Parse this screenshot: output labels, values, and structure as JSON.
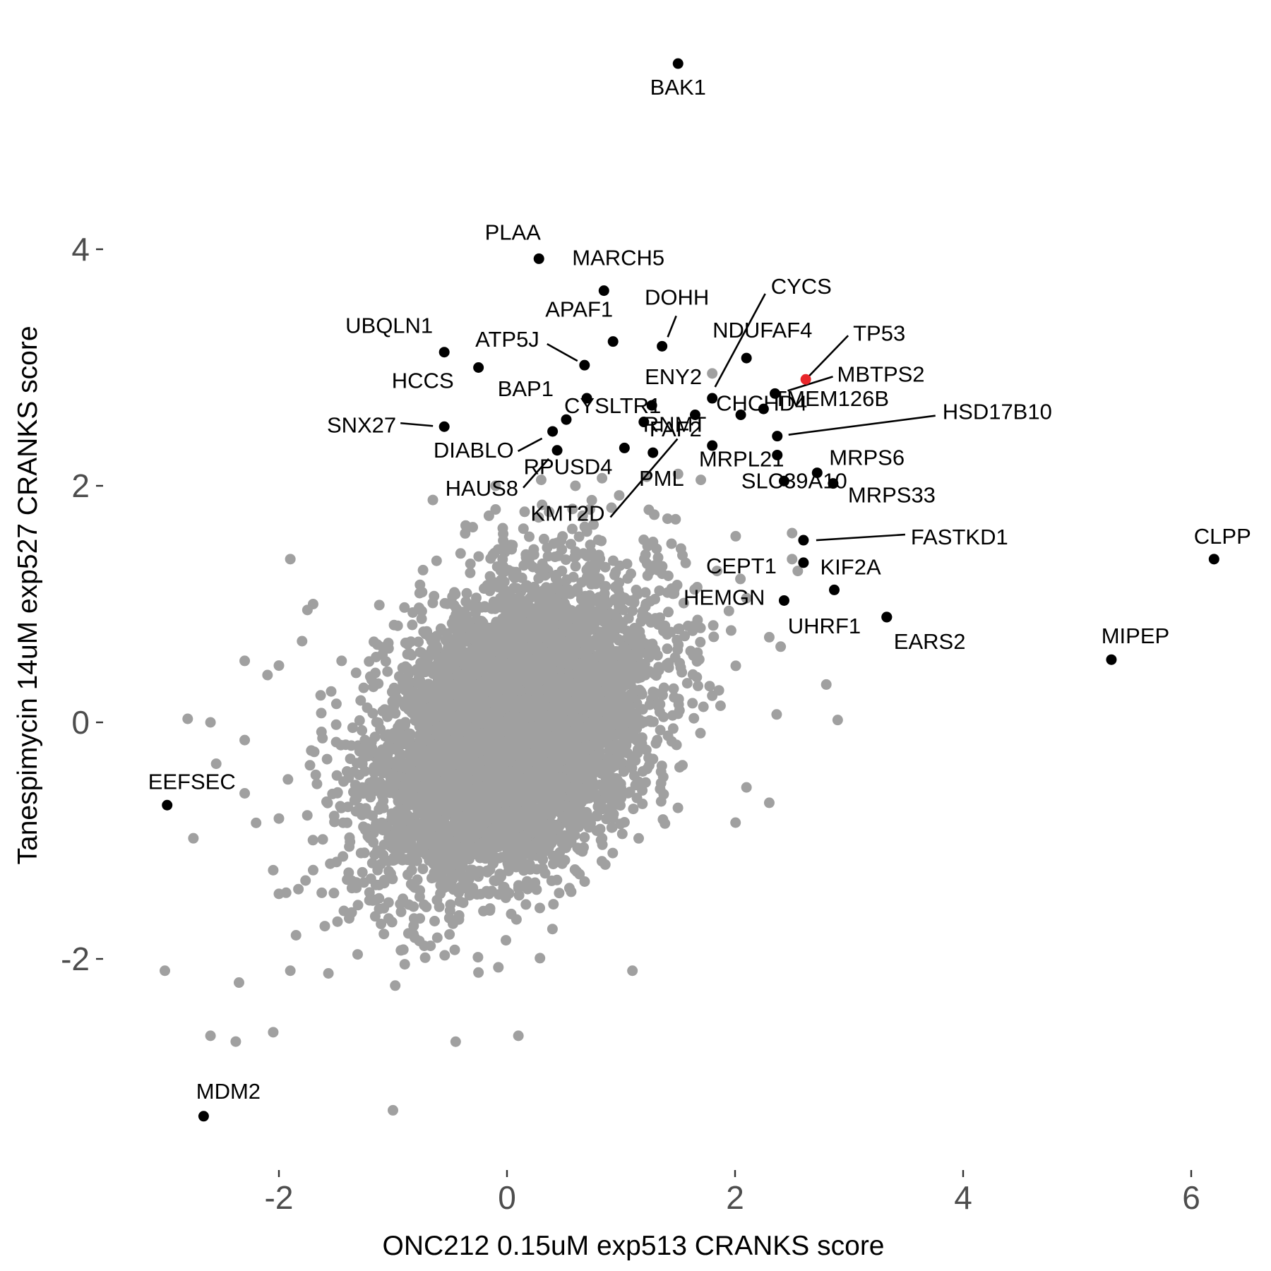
{
  "chart_data": {
    "type": "scatter",
    "title": "",
    "xlabel": "ONC212 0.15uM exp513 CRANKS score",
    "ylabel": "Tanespimycin 14uM exp527 CRANKS score",
    "xlim": [
      -3.1,
      6.5
    ],
    "ylim": [
      -3.7,
      5.5
    ],
    "x_ticks": [
      -2,
      0,
      2,
      4,
      6
    ],
    "y_ticks": [
      -2,
      0,
      2,
      4
    ],
    "grid": false,
    "legend": "none",
    "colors": {
      "background_points": "#a0a0a0",
      "highlighted_points": "#000000",
      "special_point": "#e8262a",
      "labels": "#000000"
    },
    "background_series": {
      "name": "",
      "description": "~18000 genes forming a dense elliptical cloud centred near (0, 0), plus scattered outliers",
      "color": "#a0a0a0",
      "outliers": [
        [
          -0.65,
          1.88
        ],
        [
          -0.1,
          1.8
        ],
        [
          -0.3,
          1.65
        ],
        [
          -1.9,
          1.38
        ],
        [
          -1.7,
          1.0
        ],
        [
          -1.75,
          0.95
        ],
        [
          -2.3,
          0.52
        ],
        [
          -2.0,
          0.48
        ],
        [
          -2.1,
          0.4
        ],
        [
          -2.8,
          0.03
        ],
        [
          -2.6,
          0.0
        ],
        [
          -2.3,
          -0.15
        ],
        [
          -2.55,
          -0.35
        ],
        [
          -2.3,
          -0.6
        ],
        [
          -2.75,
          -0.98
        ],
        [
          -2.2,
          -0.85
        ],
        [
          -2.05,
          -1.25
        ],
        [
          -2.0,
          -1.45
        ],
        [
          -1.85,
          -1.8
        ],
        [
          -1.9,
          -2.1
        ],
        [
          -2.35,
          -2.2
        ],
        [
          -3.0,
          -2.1
        ],
        [
          -2.6,
          -2.65
        ],
        [
          -2.05,
          -2.62
        ],
        [
          -0.45,
          -2.7
        ],
        [
          -1.0,
          -3.28
        ],
        [
          0.1,
          -2.65
        ],
        [
          1.1,
          -2.1
        ],
        [
          2.1,
          -0.55
        ],
        [
          2.3,
          -0.68
        ],
        [
          2.8,
          0.32
        ],
        [
          2.9,
          0.02
        ],
        [
          2.3,
          0.72
        ],
        [
          2.4,
          0.64
        ],
        [
          2.1,
          1.05
        ],
        [
          2.5,
          1.38
        ],
        [
          2.55,
          1.28
        ],
        [
          1.7,
          2.05
        ],
        [
          1.8,
          2.95
        ],
        [
          2.5,
          1.6
        ],
        [
          1.5,
          2.1
        ],
        [
          0.3,
          2.05
        ],
        [
          -0.1,
          2.0
        ],
        [
          0.6,
          2.0
        ]
      ]
    },
    "highlighted_points": [
      {
        "label": "BAK1",
        "x": 1.5,
        "y": 5.57
      },
      {
        "label": "PLAA",
        "x": 0.28,
        "y": 3.92
      },
      {
        "label": "MARCH5",
        "x": 0.85,
        "y": 3.65
      },
      {
        "label": "UBQLN1",
        "x": -0.55,
        "y": 3.13
      },
      {
        "label": "HCCS",
        "x": -0.25,
        "y": 3.0
      },
      {
        "label": "APAF1",
        "x": 0.93,
        "y": 3.22
      },
      {
        "label": "DOHH",
        "x": 1.36,
        "y": 3.18
      },
      {
        "label": "ATP5J",
        "x": 0.68,
        "y": 3.02
      },
      {
        "label": "CYSLTR1",
        "x": 0.7,
        "y": 2.74
      },
      {
        "label": "ENY2",
        "x": 1.27,
        "y": 2.68
      },
      {
        "label": "CYCS",
        "x": 1.8,
        "y": 2.74
      },
      {
        "label": "NDUFAF4",
        "x": 2.1,
        "y": 3.08
      },
      {
        "label": "CHCHD4",
        "x": 2.05,
        "y": 2.6
      },
      {
        "label": "TP53",
        "x": 2.62,
        "y": 2.9,
        "special": true
      },
      {
        "label": "MBTPS2",
        "x": 2.35,
        "y": 2.78
      },
      {
        "label": "SNX27",
        "x": -0.55,
        "y": 2.5
      },
      {
        "label": "BAP1",
        "x": 0.52,
        "y": 2.56
      },
      {
        "label": "RNMT",
        "x": 1.2,
        "y": 2.54
      },
      {
        "label": "DIABLO",
        "x": 0.4,
        "y": 2.46
      },
      {
        "label": "HAUS8",
        "x": 0.44,
        "y": 2.3
      },
      {
        "label": "RPUSD4",
        "x": 1.03,
        "y": 2.32
      },
      {
        "label": "FAF2",
        "x": 1.28,
        "y": 2.28
      },
      {
        "label": "PML",
        "x": 1.8,
        "y": 2.34
      },
      {
        "label": "KMT2D",
        "x": 1.65,
        "y": 2.6
      },
      {
        "label": "TMEM126B",
        "x": 2.25,
        "y": 2.65
      },
      {
        "label": "HSD17B10",
        "x": 2.37,
        "y": 2.42
      },
      {
        "label": "SLC39A10",
        "x": 2.37,
        "y": 2.26
      },
      {
        "label": "MRPS6",
        "x": 2.72,
        "y": 2.11
      },
      {
        "label": "MRPS33",
        "x": 2.86,
        "y": 2.02
      },
      {
        "label": "MRPL21",
        "x": 2.43,
        "y": 2.04
      },
      {
        "label": "FASTKD1",
        "x": 2.6,
        "y": 1.54
      },
      {
        "label": "CEPT1",
        "x": 2.6,
        "y": 1.35
      },
      {
        "label": "KIF2A",
        "x": 2.87,
        "y": 1.12
      },
      {
        "label": "HEMGN",
        "x": 2.43,
        "y": 1.03
      },
      {
        "label": "UHRF1",
        "x": 3.33,
        "y": 0.89
      },
      {
        "label": "EARS2",
        "x": 3.33,
        "y": 0.89
      },
      {
        "label": "CLPP",
        "x": 6.2,
        "y": 1.38
      },
      {
        "label": "MIPEP",
        "x": 5.3,
        "y": 0.53
      },
      {
        "label": "EEFSEC",
        "x": -2.98,
        "y": -0.7
      },
      {
        "label": "MDM2",
        "x": -2.66,
        "y": -3.33
      }
    ]
  }
}
